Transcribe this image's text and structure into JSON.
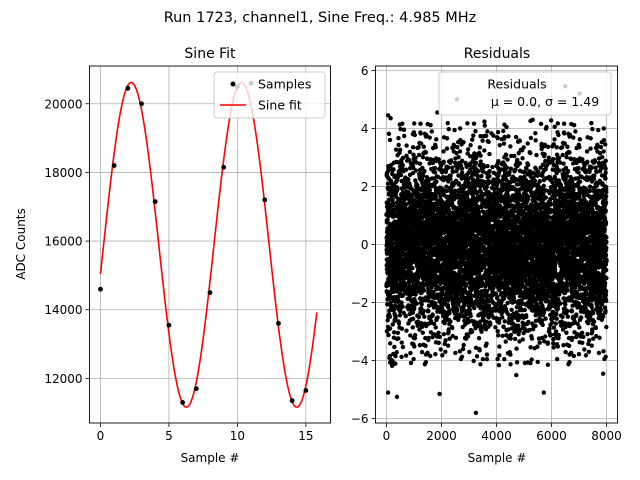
{
  "figure": {
    "suptitle": "Run 1723, channel1, Sine Freq.: 4.985 MHz"
  },
  "chart_data": [
    {
      "type": "line",
      "title": "Sine Fit",
      "xlabel": "Sample #",
      "ylabel": "ADC Counts",
      "xlim": [
        -0.8,
        16.8
      ],
      "ylim": [
        10700,
        21100
      ],
      "xticks": [
        0,
        5,
        10,
        15
      ],
      "yticks": [
        12000,
        14000,
        16000,
        18000,
        20000
      ],
      "grid": true,
      "legend": {
        "position": "upper right",
        "entries": [
          "Samples",
          "Sine fit"
        ]
      },
      "series": [
        {
          "name": "Samples",
          "style": "scatter",
          "color": "#000000",
          "x": [
            0,
            1,
            2,
            3,
            4,
            5,
            6,
            7,
            8,
            9,
            10,
            11,
            12,
            13,
            14,
            15
          ],
          "y": [
            14600,
            18200,
            20450,
            20000,
            17150,
            13550,
            11300,
            11700,
            14500,
            18150,
            20500,
            20600,
            17200,
            13600,
            11350,
            11650
          ]
        },
        {
          "name": "Sine fit",
          "style": "line",
          "color": "#ff0000",
          "model": {
            "offset": 15890,
            "amplitude": 4730,
            "period_samples": 8.06,
            "phase_rad": -0.18,
            "x_range": [
              0,
              15.8
            ]
          }
        }
      ]
    },
    {
      "type": "scatter",
      "title": "Residuals",
      "xlabel": "Sample #",
      "ylabel": "",
      "xlim": [
        -400,
        8400
      ],
      "ylim": [
        -6.15,
        6.15
      ],
      "xticks": [
        0,
        2000,
        4000,
        6000,
        8000
      ],
      "yticks": [
        -6,
        -4,
        -2,
        0,
        2,
        4,
        6
      ],
      "grid": true,
      "legend": {
        "position": "upper right",
        "entries": [
          "Residuals",
          "μ = 0.0, σ = 1.49"
        ]
      },
      "series": [
        {
          "name": "Residuals",
          "color": "#000000",
          "summary": {
            "count": 8000,
            "x_range": [
              0,
              8000
            ],
            "mean": 0.0,
            "sigma": 1.49
          },
          "outliers": [
            {
              "x": 60,
              "y": 4.45
            },
            {
              "x": 150,
              "y": 4.35
            },
            {
              "x": 2560,
              "y": 5.0
            },
            {
              "x": 6500,
              "y": 5.45
            },
            {
              "x": 7020,
              "y": 5.2
            },
            {
              "x": 5350,
              "y": 4.8
            },
            {
              "x": 60,
              "y": -5.1
            },
            {
              "x": 380,
              "y": -5.25
            },
            {
              "x": 1930,
              "y": -5.15
            },
            {
              "x": 3250,
              "y": -5.8
            },
            {
              "x": 5720,
              "y": -5.1
            },
            {
              "x": 4720,
              "y": -4.5
            },
            {
              "x": 7880,
              "y": -4.45
            },
            {
              "x": 1850,
              "y": 4.55
            }
          ]
        }
      ]
    }
  ]
}
